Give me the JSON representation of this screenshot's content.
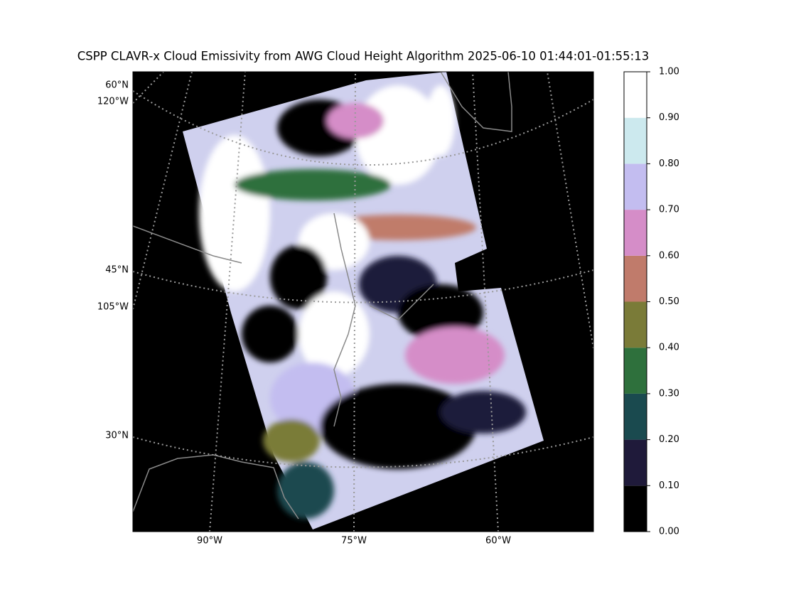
{
  "title": "CSPP CLAVR-x Cloud Emissivity from AWG Cloud Height Algorithm 2025-06-10 01:44:01-01:55:13",
  "map": {
    "lat_labels": [
      "60°N",
      "45°N",
      "30°N"
    ],
    "left_lon_labels": [
      "120°W",
      "105°W"
    ],
    "bottom_lon_labels": [
      "90°W",
      "75°W",
      "60°W"
    ]
  },
  "colorbar": {
    "lim": [
      0,
      1
    ],
    "ticks": [
      {
        "value": 0,
        "label": "0.00"
      },
      {
        "value": 0.1,
        "label": "0.10"
      },
      {
        "value": 0.2,
        "label": "0.20"
      },
      {
        "value": 0.3,
        "label": "0.30"
      },
      {
        "value": 0.4,
        "label": "0.40"
      },
      {
        "value": 0.5,
        "label": "0.50"
      },
      {
        "value": 0.6,
        "label": "0.60"
      },
      {
        "value": 0.7,
        "label": "0.70"
      },
      {
        "value": 0.8,
        "label": "0.80"
      },
      {
        "value": 0.9,
        "label": "0.90"
      },
      {
        "value": 1,
        "label": "1.00"
      }
    ],
    "colors": [
      "#000000",
      "#1f1a3a",
      "#1a4a4f",
      "#2e703c",
      "#7a7b38",
      "#c07b6b",
      "#d58dc8",
      "#c3bdf0",
      "#cce9ee",
      "#ffffff"
    ]
  }
}
